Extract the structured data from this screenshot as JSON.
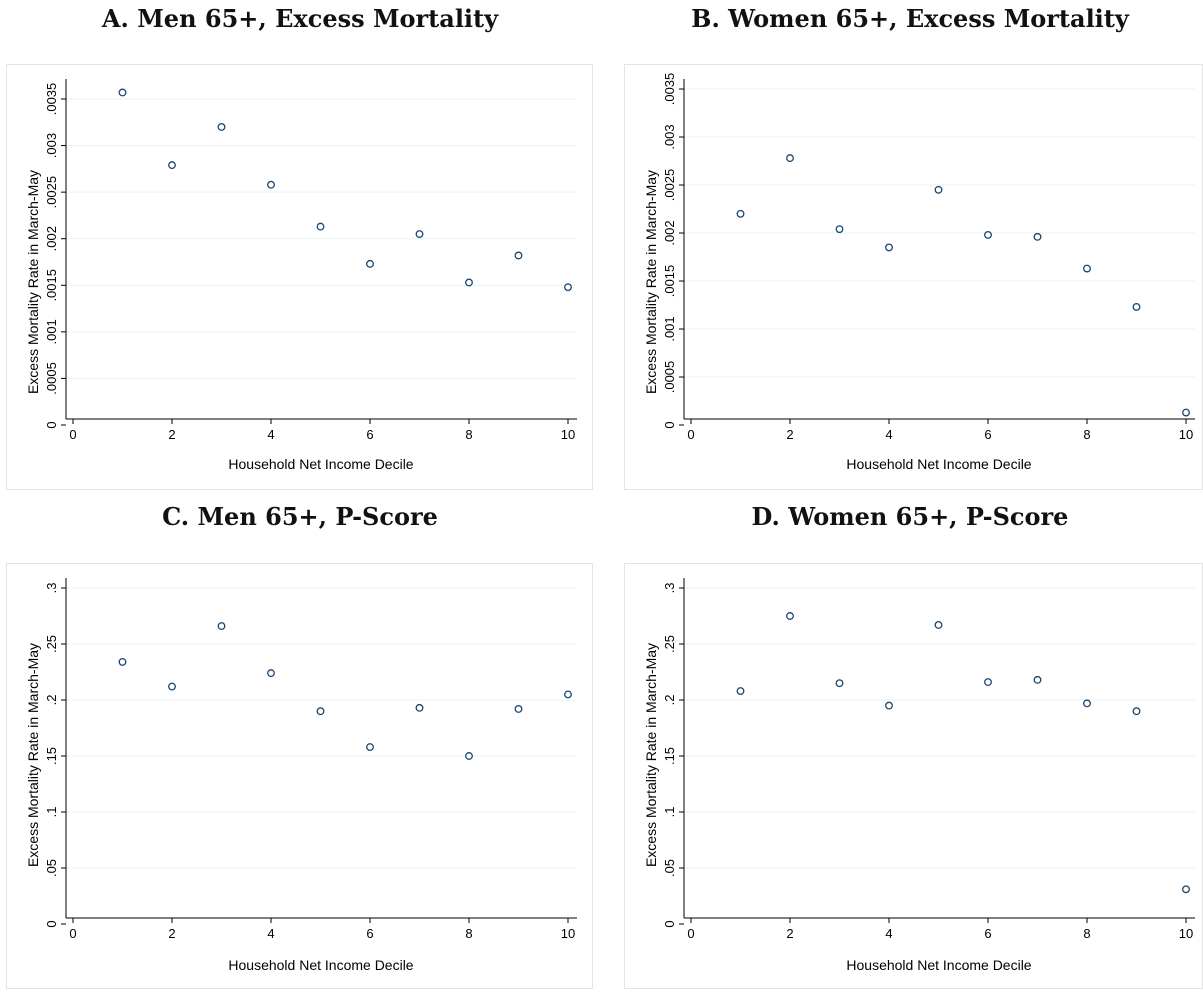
{
  "chart_data": [
    {
      "type": "scatter",
      "title": "A. Men 65+, Excess Mortality",
      "xlabel": "Household Net Income Decile",
      "ylabel": "Excess Mortality Rate in March-May",
      "x": [
        1,
        2,
        3,
        4,
        5,
        6,
        7,
        8,
        9,
        10
      ],
      "y": [
        0.00357,
        0.00279,
        0.0032,
        0.00258,
        0.00213,
        0.00173,
        0.00205,
        0.00153,
        0.00182,
        0.00148
      ],
      "xlim": [
        0,
        10
      ],
      "ylim": [
        0,
        0.0035
      ],
      "xticks": [
        0,
        2,
        4,
        6,
        8,
        10
      ],
      "yticks": [
        0,
        0.0005,
        0.001,
        0.0015,
        0.002,
        0.0025,
        0.003,
        0.0035
      ],
      "yticklabels": [
        "0",
        ".0005",
        ".001",
        ".0015",
        ".002",
        ".0025",
        ".003",
        ".0035"
      ],
      "grid": true,
      "marker_color": "#1a476f"
    },
    {
      "type": "scatter",
      "title": "B. Women 65+, Excess Mortality",
      "xlabel": "Household Net Income Decile",
      "ylabel": "Excess Mortality Rate in March-May",
      "x": [
        1,
        2,
        3,
        4,
        5,
        6,
        7,
        8,
        9,
        10
      ],
      "y": [
        0.0022,
        0.00278,
        0.00204,
        0.00185,
        0.00245,
        0.00198,
        0.00196,
        0.00163,
        0.00123,
        0.00013
      ],
      "xlim": [
        0,
        10
      ],
      "ylim": [
        0,
        0.0035
      ],
      "xticks": [
        0,
        2,
        4,
        6,
        8,
        10
      ],
      "yticks": [
        0,
        0.0005,
        0.001,
        0.0015,
        0.002,
        0.0025,
        0.003,
        0.0035
      ],
      "yticklabels": [
        "0",
        ".0005",
        ".001",
        ".0015",
        ".002",
        ".0025",
        ".003",
        ".0035"
      ],
      "grid": true,
      "marker_color": "#1a476f"
    },
    {
      "type": "scatter",
      "title": "C. Men 65+, P-Score",
      "xlabel": "Household Net Income Decile",
      "ylabel": "Excess Mortality Rate in March-May",
      "x": [
        1,
        2,
        3,
        4,
        5,
        6,
        7,
        8,
        9,
        10
      ],
      "y": [
        0.234,
        0.212,
        0.266,
        0.224,
        0.19,
        0.158,
        0.193,
        0.15,
        0.192,
        0.205
      ],
      "xlim": [
        0,
        10
      ],
      "ylim": [
        0,
        0.3
      ],
      "xticks": [
        0,
        2,
        4,
        6,
        8,
        10
      ],
      "yticks": [
        0,
        0.05,
        0.1,
        0.15,
        0.2,
        0.25,
        0.3
      ],
      "yticklabels": [
        "0",
        ".05",
        ".1",
        ".15",
        ".2",
        ".25",
        ".3"
      ],
      "grid": true,
      "marker_color": "#1a476f"
    },
    {
      "type": "scatter",
      "title": "D. Women 65+, P-Score",
      "xlabel": "Household Net Income Decile",
      "ylabel": "Excess Mortality Rate in March-May",
      "x": [
        1,
        2,
        3,
        4,
        5,
        6,
        7,
        8,
        9,
        10
      ],
      "y": [
        0.208,
        0.275,
        0.215,
        0.195,
        0.267,
        0.216,
        0.218,
        0.197,
        0.19,
        0.031
      ],
      "xlim": [
        0,
        10
      ],
      "ylim": [
        0,
        0.3
      ],
      "xticks": [
        0,
        2,
        4,
        6,
        8,
        10
      ],
      "yticks": [
        0,
        0.05,
        0.1,
        0.15,
        0.2,
        0.25,
        0.3
      ],
      "yticklabels": [
        "0",
        ".05",
        ".1",
        ".15",
        ".2",
        ".25",
        ".3"
      ],
      "grid": true,
      "marker_color": "#1a476f"
    }
  ]
}
